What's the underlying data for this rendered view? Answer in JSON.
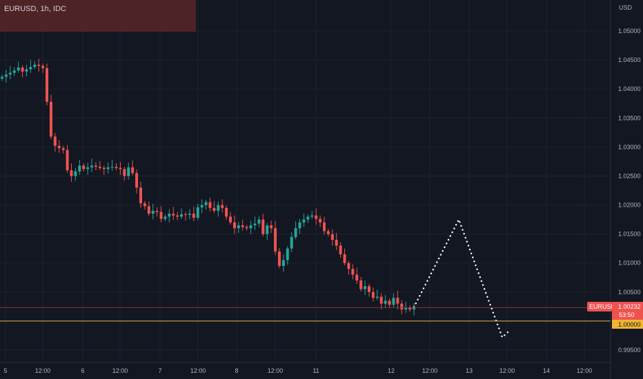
{
  "header": {
    "symbol_label": "EURUSD, 1h, IDC"
  },
  "colors": {
    "background": "#131722",
    "up": "#26a69a",
    "down": "#ef5350",
    "level_line": "#f0b533",
    "last_price_line": "#8c3035",
    "projection": "#ffffff",
    "axis_text": "#b2b5be",
    "overlay": "#5c2627"
  },
  "chart_data": {
    "type": "candlestick",
    "symbol": "EURUSD",
    "interval": "1h",
    "source": "IDC",
    "currency_label": "USD",
    "y_ticks": [
      "1.05000",
      "1.04500",
      "1.04000",
      "1.03500",
      "1.03000",
      "1.02500",
      "1.02000",
      "1.01500",
      "1.01000",
      "1.00500",
      "1.00000",
      "0.99500"
    ],
    "ylim": [
      0.9925,
      1.0545
    ],
    "x_ticks": [
      "5",
      "12:00",
      "6",
      "12:00",
      "7",
      "12:00",
      "8",
      "12:00",
      "11",
      "12",
      "12:00",
      "13",
      "12:00",
      "14",
      "12:00"
    ],
    "last_price": {
      "symbol": "EURUSD",
      "value": "1.00232",
      "countdown": "53:50",
      "y": 1.00232
    },
    "level": {
      "value": "1.00000",
      "y": 1.0
    },
    "candles_close": [
      1.0421,
      1.0425,
      1.0428,
      1.0432,
      1.0437,
      1.043,
      1.0434,
      1.0438,
      1.0442,
      1.044,
      1.0436,
      1.0378,
      1.0318,
      1.0302,
      1.0298,
      1.0295,
      1.026,
      1.025,
      1.0258,
      1.0268,
      1.0262,
      1.0265,
      1.0268,
      1.0266,
      1.0264,
      1.0262,
      1.0265,
      1.0266,
      1.0264,
      1.0262,
      1.025,
      1.0265,
      1.0255,
      1.023,
      1.0203,
      1.0198,
      1.0185,
      1.019,
      1.0188,
      1.0176,
      1.018,
      1.0185,
      1.0182,
      1.018,
      1.0184,
      1.0183,
      1.0185,
      1.0178,
      1.0196,
      1.02,
      1.0205,
      1.0195,
      1.019,
      1.02,
      1.0195,
      1.018,
      1.017,
      1.016,
      1.0165,
      1.0162,
      1.016,
      1.0165,
      1.0168,
      1.0175,
      1.015,
      1.0165,
      1.016,
      1.012,
      1.0095,
      1.0105,
      1.0125,
      1.0145,
      1.016,
      1.017,
      1.0175,
      1.018,
      1.0182,
      1.0176,
      1.017,
      1.0155,
      1.015,
      1.014,
      1.013,
      1.0115,
      1.01,
      1.009,
      1.008,
      1.007,
      1.0055,
      1.006,
      1.005,
      1.004,
      1.0042,
      1.003,
      1.0035,
      1.0028,
      1.004,
      1.003,
      1.002,
      1.0023,
      1.002,
      1.0023
    ],
    "projection_path": [
      {
        "x": "Oct 12 14:00",
        "y": 1.0024
      },
      {
        "x": "Oct 13 04:00",
        "y": 1.0175
      },
      {
        "x": "Oct 13 10:00",
        "y": 0.9972
      },
      {
        "x": "Oct 13 12:00",
        "y": 0.9983
      }
    ]
  }
}
